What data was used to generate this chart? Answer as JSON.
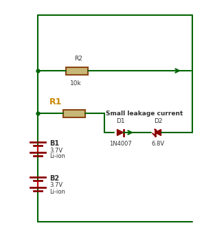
{
  "bg_color": "#ffffff",
  "wire_color": "#006400",
  "battery_color": "#8B0000",
  "resistor_color": "#8B4513",
  "resistor_fill": "#C8B878",
  "diode_color": "#8B0000",
  "dashed_color": "#CC0000",
  "label_color_r1": "#CC8800",
  "label_color_black": "#333333",
  "text_leakage": "Small leakage current",
  "text_r2": "R2",
  "text_10k": "10k",
  "text_r1": "R1",
  "text_b1": "B1",
  "text_b1_v": "3.7V",
  "text_b1_type": "Li-ion",
  "text_b2": "B2",
  "text_b2_v": "3.7V",
  "text_b2_type": "Li-ion",
  "text_d1": "D1",
  "text_d1_type": "1N4007",
  "text_d2": "D2",
  "text_d2_type": "6.8V",
  "fig_width": 2.97,
  "fig_height": 3.35,
  "dpi": 100
}
